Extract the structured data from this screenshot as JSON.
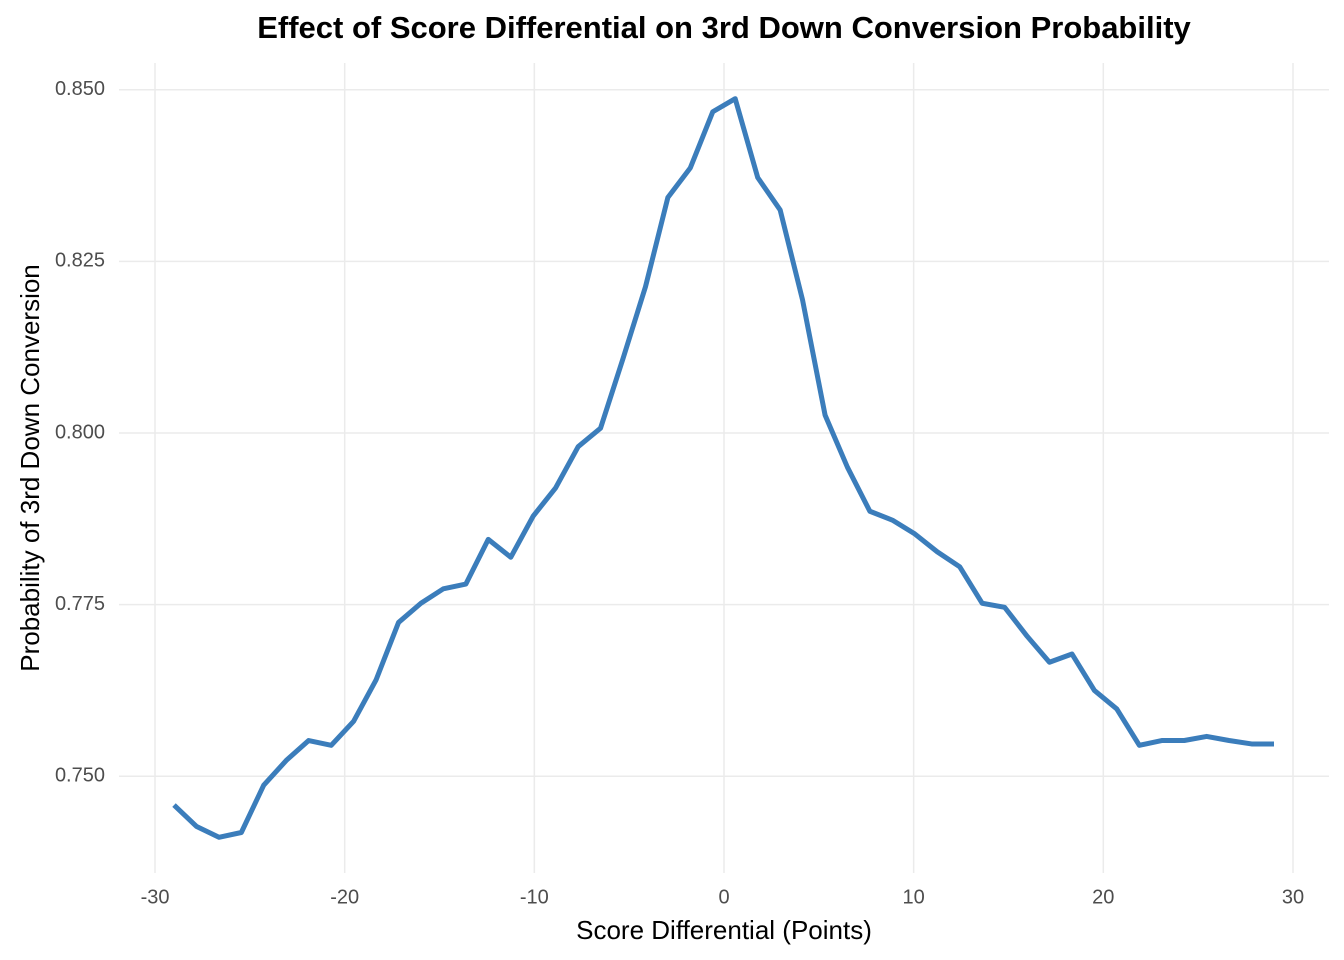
{
  "chart_data": {
    "type": "line",
    "title": "Effect of Score Differential on 3rd Down Conversion Probability",
    "x_label": "Score Differential (Points)",
    "y_label": "Probability of 3rd Down Conversion",
    "x": [
      -29,
      -27.82,
      -26.63,
      -25.45,
      -24.27,
      -23.08,
      -21.9,
      -20.71,
      -19.53,
      -18.35,
      -17.16,
      -15.98,
      -14.8,
      -13.61,
      -12.43,
      -11.24,
      -10.06,
      -8.88,
      -7.69,
      -6.51,
      -5.33,
      -4.14,
      -2.96,
      -1.78,
      -0.59,
      0.59,
      1.78,
      2.96,
      4.14,
      5.33,
      6.51,
      7.69,
      8.88,
      10.06,
      11.24,
      12.43,
      13.61,
      14.8,
      15.98,
      17.16,
      18.35,
      19.53,
      20.71,
      21.9,
      23.08,
      24.27,
      25.45,
      26.63,
      27.82,
      29
    ],
    "series": [
      {
        "name": "Probability",
        "color": "#3b7dbb",
        "values": [
          0.7458,
          0.7427,
          0.7411,
          0.7418,
          0.7487,
          0.7523,
          0.7552,
          0.7545,
          0.758,
          0.764,
          0.7724,
          0.7752,
          0.7773,
          0.778,
          0.7845,
          0.7819,
          0.7879,
          0.792,
          0.798,
          0.8007,
          0.8108,
          0.8213,
          0.8343,
          0.8386,
          0.8468,
          0.8487,
          0.8372,
          0.8325,
          0.8194,
          0.8026,
          0.795,
          0.7886,
          0.7873,
          0.7853,
          0.7827,
          0.7805,
          0.7752,
          0.7746,
          0.7704,
          0.7666,
          0.7678,
          0.7625,
          0.7598,
          0.7545,
          0.7552,
          0.7552,
          0.7558,
          0.7552,
          0.7547,
          0.7547
        ]
      }
    ],
    "xlim": [
      -31.9,
      31.9
    ],
    "xticks": [
      -30,
      -20,
      -10,
      0,
      10,
      20,
      30
    ],
    "ylim": [
      0.7359,
      0.8539
    ],
    "yticks": [
      {
        "value": 0.75,
        "label": "0.750"
      },
      {
        "value": 0.775,
        "label": "0.775"
      },
      {
        "value": 0.8,
        "label": "0.800"
      },
      {
        "value": 0.825,
        "label": "0.825"
      },
      {
        "value": 0.85,
        "label": "0.850"
      }
    ],
    "grid": true
  }
}
